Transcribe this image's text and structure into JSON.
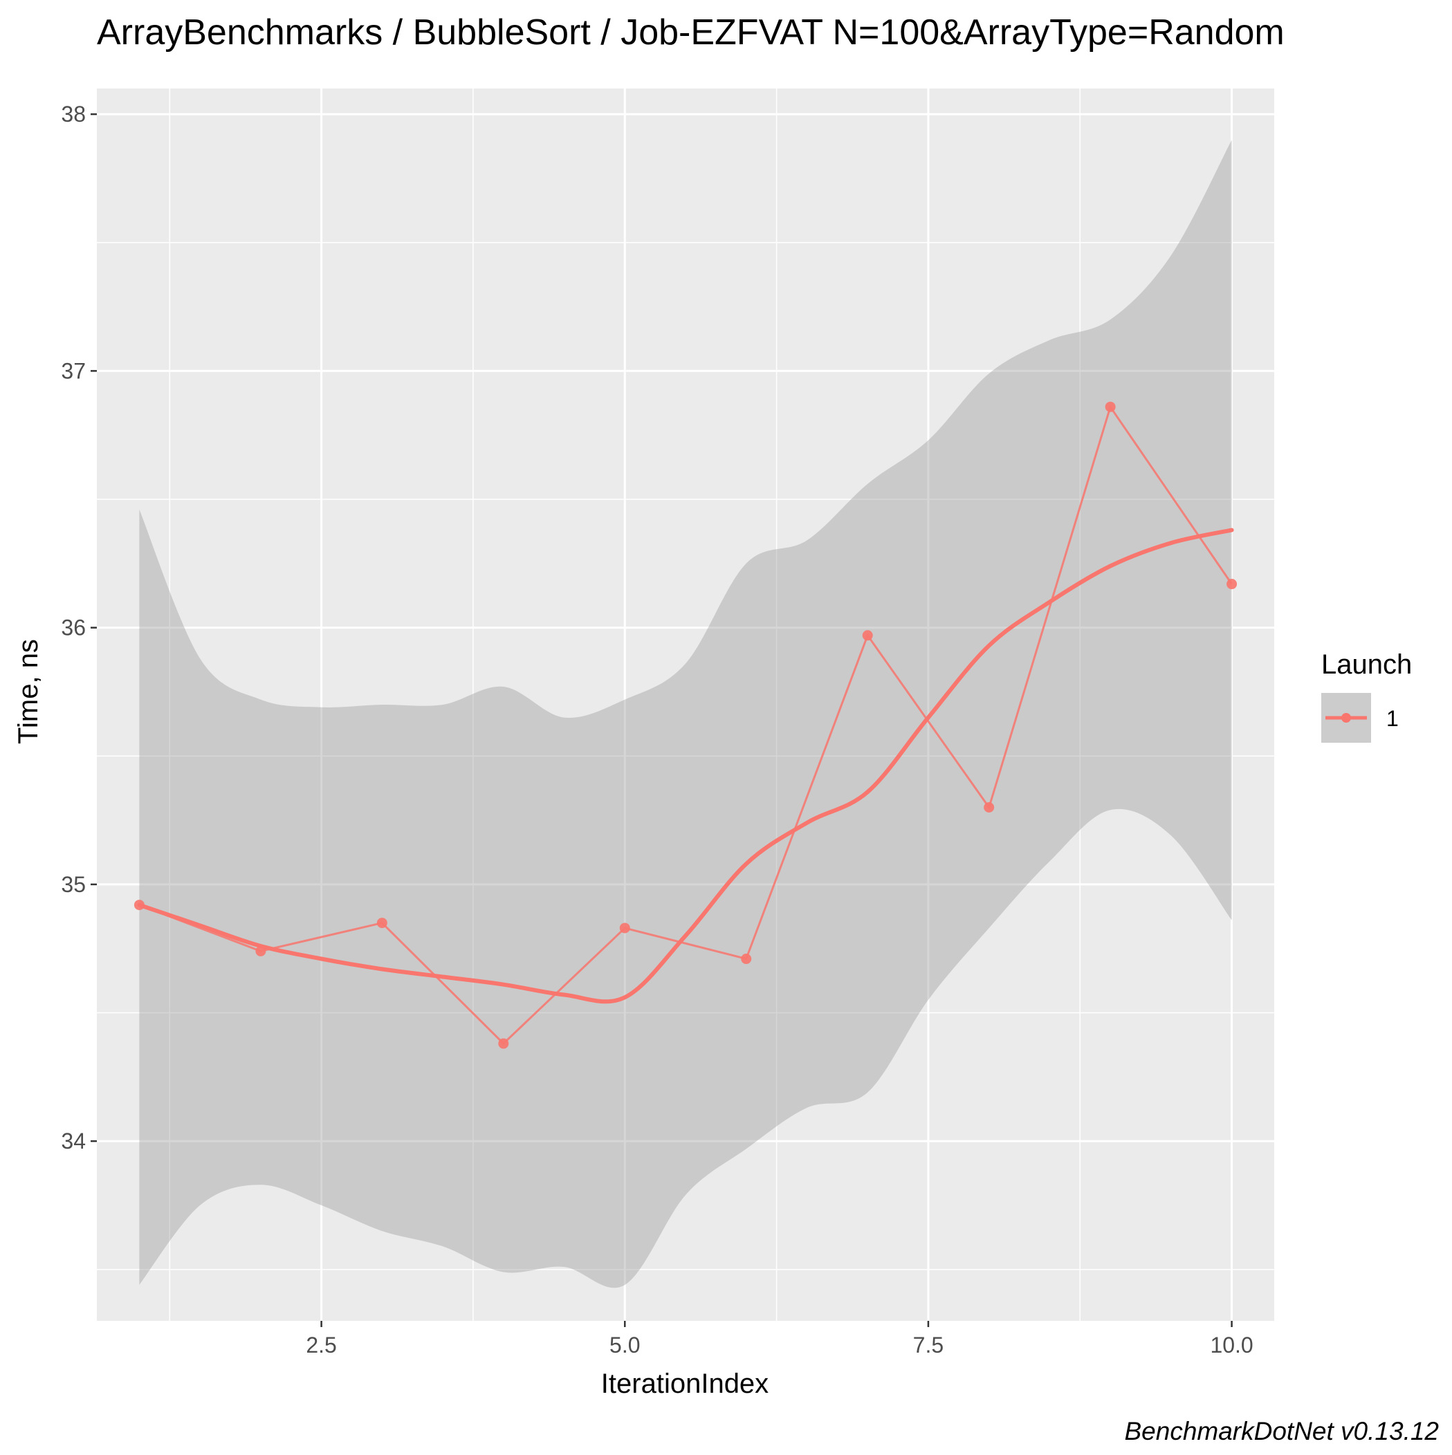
{
  "chart_data": {
    "type": "line",
    "title": "ArrayBenchmarks / BubbleSort / Job-EZFVAT N=100&ArrayType=Random",
    "xlabel": "IterationIndex",
    "ylabel": "Time, ns",
    "caption": "BenchmarkDotNet v0.13.12",
    "xlim": [
      0.65,
      10.35
    ],
    "ylim": [
      33.3,
      38.1
    ],
    "x_ticks": [
      2.5,
      5.0,
      7.5,
      10.0
    ],
    "x_tick_labels": [
      "2.5",
      "5.0",
      "7.5",
      "10.0"
    ],
    "y_ticks": [
      34,
      35,
      36,
      37,
      38
    ],
    "y_tick_labels": [
      "34",
      "35",
      "36",
      "37",
      "38"
    ],
    "grid": true,
    "legend": {
      "title": "Launch",
      "position": "right",
      "entries": [
        "1"
      ]
    },
    "series": [
      {
        "name": "1",
        "color": "#F8766D",
        "x": [
          1,
          2,
          3,
          4,
          5,
          6,
          7,
          8,
          9,
          10
        ],
        "values": [
          34.92,
          34.74,
          34.85,
          34.38,
          34.83,
          34.71,
          35.97,
          35.3,
          36.86,
          36.17
        ]
      }
    ],
    "smooth": {
      "x": [
        1.0,
        1.5,
        2.0,
        2.5,
        3.0,
        3.5,
        4.0,
        4.5,
        5.0,
        5.5,
        6.0,
        6.5,
        7.0,
        7.5,
        8.0,
        8.5,
        9.0,
        9.5,
        10.0
      ],
      "y": [
        34.92,
        34.84,
        34.76,
        34.71,
        34.67,
        34.64,
        34.61,
        34.57,
        34.56,
        34.8,
        35.08,
        35.24,
        35.36,
        35.65,
        35.93,
        36.1,
        36.24,
        36.33,
        36.38
      ],
      "upper": [
        36.46,
        35.88,
        35.72,
        35.69,
        35.7,
        35.7,
        35.77,
        35.65,
        35.72,
        35.86,
        36.25,
        36.34,
        36.56,
        36.73,
        36.99,
        37.12,
        37.2,
        37.45,
        37.9
      ],
      "lower": [
        33.44,
        33.75,
        33.83,
        33.75,
        33.65,
        33.59,
        33.49,
        33.51,
        33.44,
        33.79,
        33.97,
        34.13,
        34.19,
        34.55,
        34.83,
        35.09,
        35.29,
        35.19,
        34.86
      ],
      "band_color": "#999999"
    },
    "colors": {
      "panel": "#EBEBEB",
      "grid": "#FFFFFF",
      "series": "#F8766D"
    }
  }
}
